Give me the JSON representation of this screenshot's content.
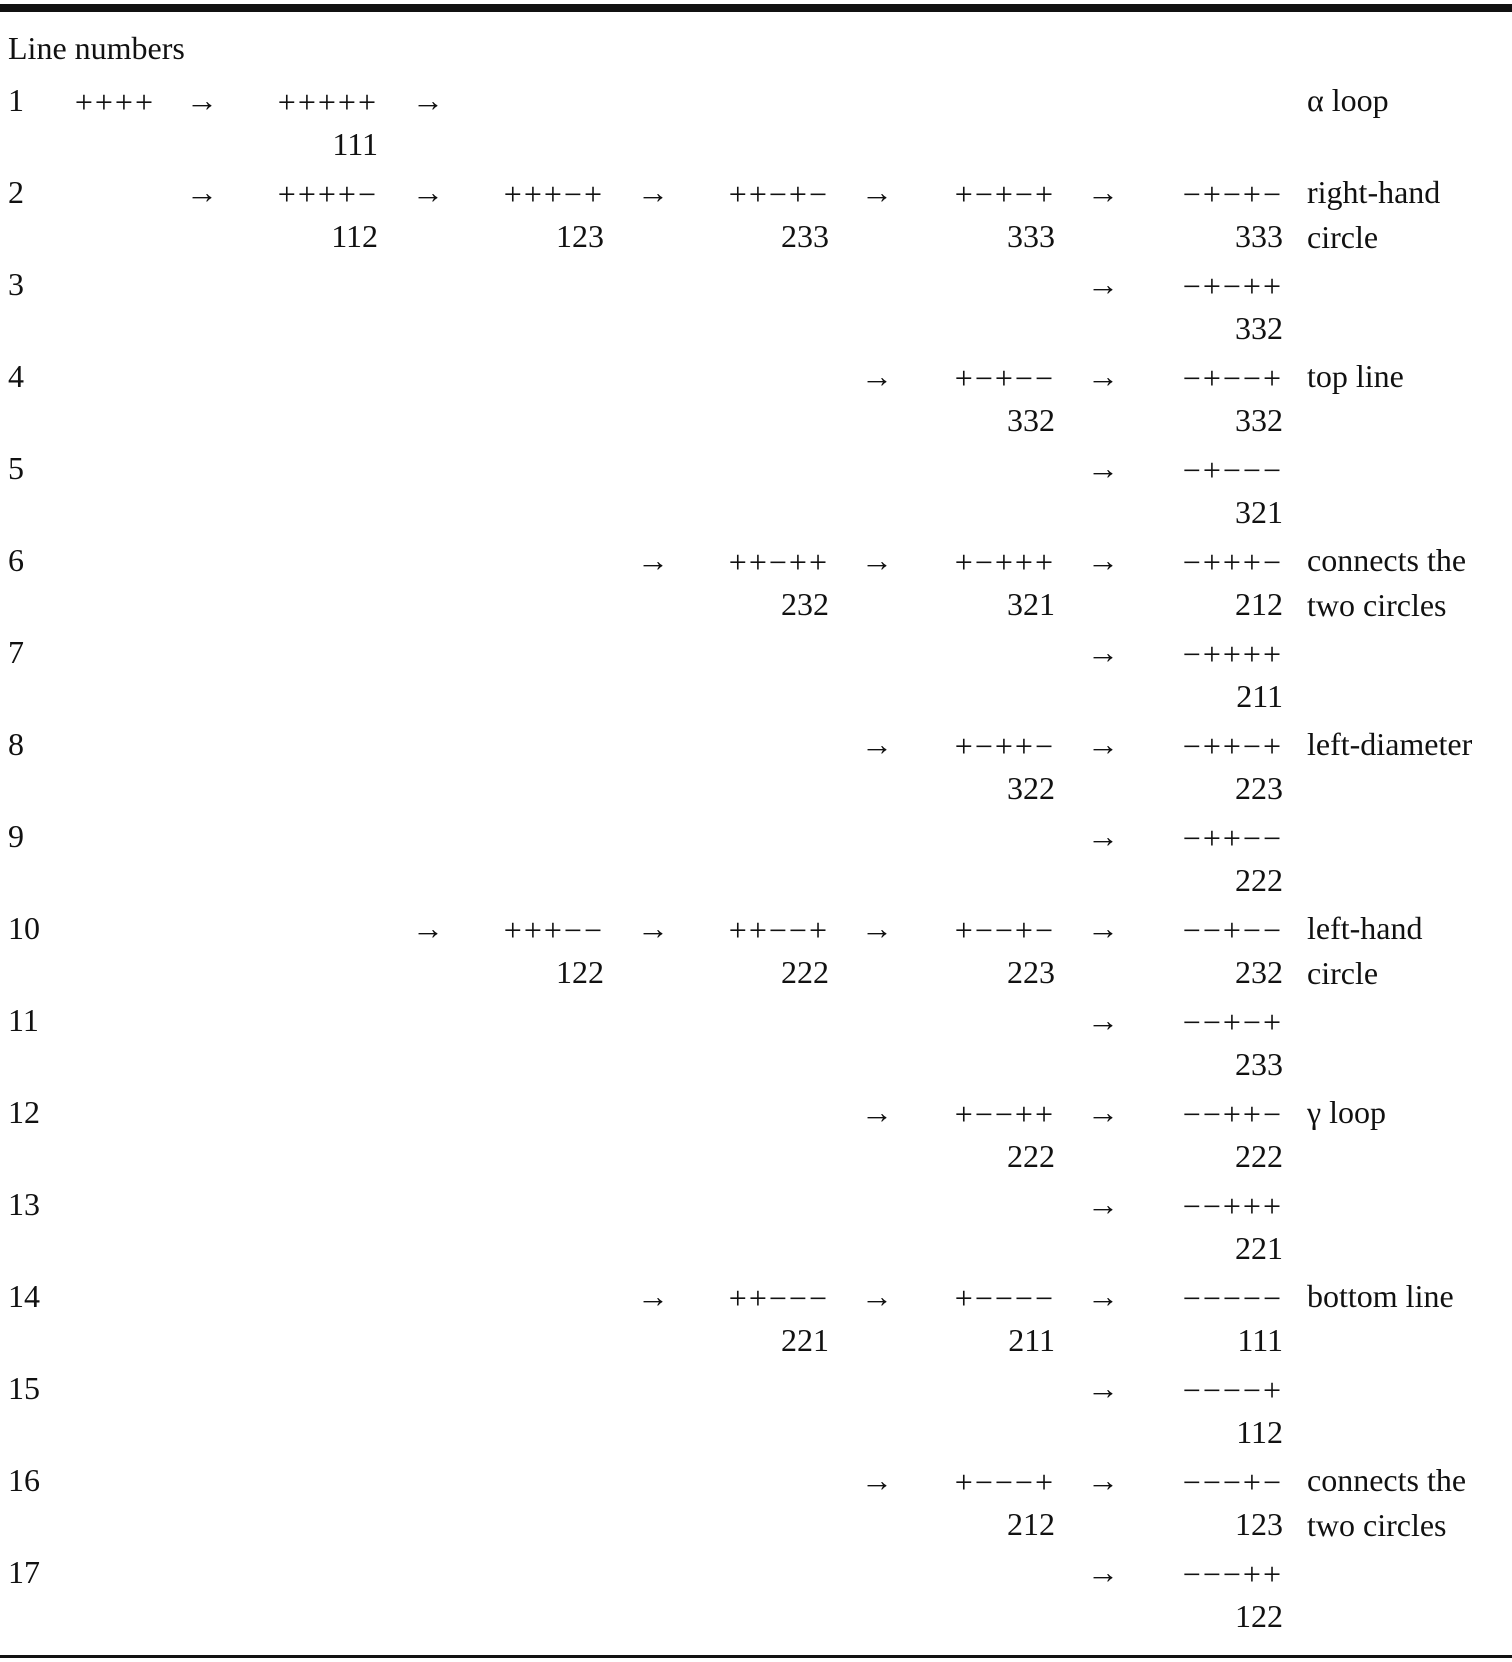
{
  "header": "Line numbers",
  "rows": [
    {
      "n": "1",
      "note": "α loop",
      "note2": "",
      "cells": [
        {
          "col": 0,
          "pattern": "++++",
          "code": ""
        },
        {
          "col": 1,
          "pattern": "+++++",
          "code": "111",
          "arrow": true
        },
        {
          "col": 2,
          "pattern": "",
          "code": "",
          "arrow": true
        }
      ]
    },
    {
      "n": "2",
      "note": "right-hand",
      "note2": "circle",
      "cells": [
        {
          "col": 1,
          "pattern": "++++−",
          "code": "112",
          "arrow": true
        },
        {
          "col": 2,
          "pattern": "+++−+",
          "code": "123",
          "arrow": true
        },
        {
          "col": 3,
          "pattern": "++−+−",
          "code": "233",
          "arrow": true
        },
        {
          "col": 4,
          "pattern": "+−+−+",
          "code": "333",
          "arrow": true
        },
        {
          "col": 5,
          "pattern": "−+−+−",
          "code": "333",
          "arrow": true
        }
      ]
    },
    {
      "n": "3",
      "note": "",
      "note2": "",
      "cells": [
        {
          "col": 5,
          "pattern": "−+−++",
          "code": "332",
          "arrow": true
        }
      ]
    },
    {
      "n": "4",
      "note": "top line",
      "note2": "",
      "cells": [
        {
          "col": 4,
          "pattern": "+−+−−",
          "code": "332",
          "arrow": true
        },
        {
          "col": 5,
          "pattern": "−+−−+",
          "code": "332",
          "arrow": true
        }
      ]
    },
    {
      "n": "5",
      "note": "",
      "note2": "",
      "cells": [
        {
          "col": 5,
          "pattern": "−+−−−",
          "code": "321",
          "arrow": true
        }
      ]
    },
    {
      "n": "6",
      "note": "connects the",
      "note2": "two circles",
      "cells": [
        {
          "col": 3,
          "pattern": "++−++",
          "code": "232",
          "arrow": true
        },
        {
          "col": 4,
          "pattern": "+−+++",
          "code": "321",
          "arrow": true
        },
        {
          "col": 5,
          "pattern": "−+++−",
          "code": "212",
          "arrow": true
        }
      ]
    },
    {
      "n": "7",
      "note": "",
      "note2": "",
      "cells": [
        {
          "col": 5,
          "pattern": "−++++",
          "code": "211",
          "arrow": true
        }
      ]
    },
    {
      "n": "8",
      "note": "left-diameter",
      "note2": "",
      "cells": [
        {
          "col": 4,
          "pattern": "+−++−",
          "code": "322",
          "arrow": true
        },
        {
          "col": 5,
          "pattern": "−++−+",
          "code": "223",
          "arrow": true
        }
      ]
    },
    {
      "n": "9",
      "note": "",
      "note2": "",
      "cells": [
        {
          "col": 5,
          "pattern": "−++−−",
          "code": "222",
          "arrow": true
        }
      ]
    },
    {
      "n": "10",
      "note": "left-hand",
      "note2": "circle",
      "cells": [
        {
          "col": 2,
          "pattern": "+++−−",
          "code": "122",
          "arrow": true
        },
        {
          "col": 3,
          "pattern": "++−−+",
          "code": "222",
          "arrow": true
        },
        {
          "col": 4,
          "pattern": "+−−+−",
          "code": "223",
          "arrow": true
        },
        {
          "col": 5,
          "pattern": "−−+−−",
          "code": "232",
          "arrow": true
        }
      ]
    },
    {
      "n": "11",
      "note": "",
      "note2": "",
      "cells": [
        {
          "col": 5,
          "pattern": "−−+−+",
          "code": "233",
          "arrow": true
        }
      ]
    },
    {
      "n": "12",
      "note": "γ loop",
      "note2": "",
      "cells": [
        {
          "col": 4,
          "pattern": "+−−++",
          "code": "222",
          "arrow": true
        },
        {
          "col": 5,
          "pattern": "−−++−",
          "code": "222",
          "arrow": true
        }
      ]
    },
    {
      "n": "13",
      "note": "",
      "note2": "",
      "cells": [
        {
          "col": 5,
          "pattern": "−−+++",
          "code": "221",
          "arrow": true
        }
      ]
    },
    {
      "n": "14",
      "note": "bottom line",
      "note2": "",
      "cells": [
        {
          "col": 3,
          "pattern": "++−−−",
          "code": "221",
          "arrow": true
        },
        {
          "col": 4,
          "pattern": "+−−−−",
          "code": "211",
          "arrow": true
        },
        {
          "col": 5,
          "pattern": "−−−−−",
          "code": "111",
          "arrow": true
        }
      ]
    },
    {
      "n": "15",
      "note": "",
      "note2": "",
      "cells": [
        {
          "col": 5,
          "pattern": "−−−−+",
          "code": "112",
          "arrow": true
        }
      ]
    },
    {
      "n": "16",
      "note": "connects the",
      "note2": "two circles",
      "cells": [
        {
          "col": 4,
          "pattern": "+−−−+",
          "code": "212",
          "arrow": true
        },
        {
          "col": 5,
          "pattern": "−−−+−",
          "code": "123",
          "arrow": true
        }
      ]
    },
    {
      "n": "17",
      "note": "",
      "note2": "",
      "cells": [
        {
          "col": 5,
          "pattern": "−−−++",
          "code": "122",
          "arrow": true
        }
      ]
    }
  ]
}
